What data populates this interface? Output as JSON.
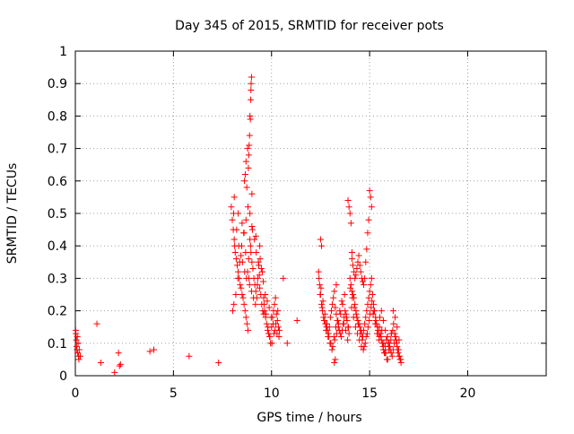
{
  "chart_data": {
    "type": "scatter",
    "title": "Day 345 of 2015, SRMTID for receiver pots",
    "xlabel": "GPS time / hours",
    "ylabel": "SRMTID / TECUs",
    "xlim": [
      0,
      24
    ],
    "ylim": [
      0,
      1
    ],
    "xticks": [
      0,
      5,
      10,
      15,
      20
    ],
    "yticks": [
      0,
      0.1,
      0.2,
      0.3,
      0.4,
      0.5,
      0.6,
      0.7,
      0.8,
      0.9,
      1
    ],
    "grid": true,
    "marker": "+",
    "color": "#ff0000",
    "x": [
      0.02,
      0.03,
      0.05,
      0.06,
      0.08,
      0.1,
      0.12,
      0.14,
      0.16,
      0.18,
      0.2,
      0.25,
      1.1,
      1.3,
      2.0,
      2.2,
      2.25,
      2.3,
      3.8,
      4.0,
      5.8,
      7.3,
      7.95,
      8.0,
      8.05,
      8.1,
      8.12,
      8.15,
      8.2,
      8.25,
      8.3,
      8.35,
      8.4,
      8.45,
      8.5,
      8.55,
      8.6,
      8.65,
      8.7,
      8.75,
      8.8,
      8.85,
      8.9,
      8.95,
      9.0,
      9.05,
      9.1,
      9.15,
      9.2,
      9.25,
      9.3,
      9.35,
      9.4,
      9.45,
      9.5,
      9.55,
      9.6,
      8.02,
      8.08,
      8.18,
      8.28,
      8.38,
      8.48,
      8.58,
      8.68,
      8.78,
      8.88,
      8.98,
      9.08,
      9.18,
      9.28,
      9.38,
      9.48,
      9.58,
      8.07,
      8.22,
      8.33,
      8.44,
      8.52,
      8.63,
      8.72,
      8.83,
      8.93,
      9.03,
      9.13,
      9.22,
      9.33,
      9.42,
      9.53,
      8.1,
      8.3,
      8.5,
      8.6,
      8.7,
      8.8,
      8.9,
      9.0,
      9.2,
      9.4,
      8.62,
      8.66,
      8.7,
      8.74,
      8.78,
      8.82,
      8.84,
      8.86,
      8.88,
      8.9,
      8.92,
      8.94,
      8.95,
      8.96,
      8.98,
      9.0,
      9.6,
      9.65,
      9.7,
      9.75,
      9.8,
      9.85,
      9.9,
      9.95,
      10.0,
      10.05,
      10.1,
      10.15,
      10.2,
      10.25,
      10.3,
      10.35,
      10.4,
      9.62,
      9.72,
      9.82,
      9.92,
      10.02,
      10.12,
      10.22,
      10.32,
      9.68,
      9.78,
      9.88,
      9.98,
      10.08,
      10.18,
      10.28,
      10.38,
      10.6,
      10.8,
      11.3,
      12.4,
      12.45,
      12.5,
      12.55,
      12.6,
      12.65,
      12.7,
      12.75,
      12.8,
      12.85,
      12.9,
      12.95,
      13.0,
      13.05,
      13.1,
      13.15,
      13.2,
      13.25,
      13.3,
      13.35,
      13.4,
      13.45,
      13.5,
      13.55,
      13.6,
      13.65,
      13.7,
      13.75,
      13.8,
      13.85,
      13.9,
      13.95,
      12.42,
      12.52,
      12.62,
      12.72,
      12.82,
      12.92,
      13.02,
      13.12,
      13.22,
      13.32,
      13.42,
      13.52,
      13.62,
      13.72,
      13.82,
      13.92,
      12.48,
      12.58,
      12.68,
      12.78,
      12.88,
      12.98,
      13.08,
      13.18,
      13.28,
      13.38,
      13.48,
      13.58,
      13.68,
      13.78,
      13.88,
      12.5,
      12.55,
      13.2,
      13.25,
      13.3,
      14.0,
      14.05,
      14.1,
      14.15,
      14.2,
      14.25,
      14.3,
      14.35,
      14.4,
      14.45,
      14.5,
      14.55,
      14.6,
      14.65,
      14.7,
      14.75,
      14.8,
      14.85,
      14.9,
      14.95,
      15.0,
      15.05,
      15.1,
      15.15,
      15.2,
      15.25,
      15.3,
      15.35,
      15.4,
      15.45,
      15.5,
      14.02,
      14.12,
      14.22,
      14.32,
      14.42,
      14.52,
      14.62,
      14.72,
      14.82,
      14.92,
      15.02,
      15.12,
      15.22,
      15.32,
      15.42,
      14.08,
      14.18,
      14.28,
      14.38,
      14.48,
      14.58,
      14.68,
      14.78,
      14.88,
      14.98,
      15.08,
      15.18,
      15.28,
      15.38,
      15.48,
      13.9,
      13.95,
      14.0,
      14.05,
      14.1,
      14.75,
      14.8,
      14.85,
      14.9,
      14.95,
      15.0,
      15.05,
      15.1,
      14.1,
      14.15,
      14.2,
      14.25,
      14.3,
      14.35,
      14.4,
      14.45,
      14.5,
      14.55,
      14.6,
      14.65,
      14.7,
      15.5,
      15.55,
      15.6,
      15.65,
      15.7,
      15.75,
      15.8,
      15.85,
      15.9,
      15.95,
      16.0,
      16.05,
      16.1,
      16.15,
      16.2,
      16.25,
      16.3,
      16.35,
      16.4,
      16.45,
      16.5,
      16.55,
      16.6,
      15.52,
      15.62,
      15.72,
      15.82,
      15.92,
      16.02,
      16.12,
      16.22,
      16.32,
      16.42,
      16.52,
      15.58,
      15.68,
      15.78,
      15.88,
      15.98,
      16.08,
      16.18,
      16.28,
      16.38,
      16.48,
      16.58,
      15.6,
      15.7,
      15.8,
      15.9,
      16.0,
      16.1,
      16.2,
      16.3,
      16.4,
      16.5
    ],
    "y": [
      0.14,
      0.13,
      0.11,
      0.09,
      0.08,
      0.12,
      0.07,
      0.1,
      0.06,
      0.05,
      0.08,
      0.06,
      0.16,
      0.04,
      0.01,
      0.07,
      0.03,
      0.035,
      0.075,
      0.08,
      0.06,
      0.04,
      0.52,
      0.48,
      0.45,
      0.42,
      0.4,
      0.38,
      0.36,
      0.34,
      0.32,
      0.3,
      0.28,
      0.27,
      0.25,
      0.24,
      0.22,
      0.2,
      0.18,
      0.16,
      0.14,
      0.3,
      0.42,
      0.38,
      0.35,
      0.33,
      0.3,
      0.28,
      0.26,
      0.24,
      0.3,
      0.34,
      0.27,
      0.25,
      0.22,
      0.2,
      0.19,
      0.2,
      0.22,
      0.25,
      0.3,
      0.35,
      0.4,
      0.44,
      0.38,
      0.32,
      0.28,
      0.26,
      0.24,
      0.22,
      0.28,
      0.31,
      0.33,
      0.29,
      0.5,
      0.45,
      0.4,
      0.37,
      0.35,
      0.32,
      0.3,
      0.36,
      0.4,
      0.45,
      0.42,
      0.38,
      0.35,
      0.36,
      0.32,
      0.55,
      0.5,
      0.47,
      0.44,
      0.48,
      0.52,
      0.5,
      0.46,
      0.43,
      0.4,
      0.6,
      0.62,
      0.66,
      0.58,
      0.7,
      0.64,
      0.68,
      0.71,
      0.74,
      0.8,
      0.79,
      0.85,
      0.88,
      0.9,
      0.92,
      0.56,
      0.24,
      0.2,
      0.18,
      0.16,
      0.14,
      0.13,
      0.12,
      0.1,
      0.15,
      0.18,
      0.2,
      0.22,
      0.24,
      0.19,
      0.17,
      0.15,
      0.14,
      0.22,
      0.19,
      0.15,
      0.12,
      0.1,
      0.13,
      0.16,
      0.2,
      0.25,
      0.23,
      0.21,
      0.18,
      0.16,
      0.14,
      0.13,
      0.12,
      0.3,
      0.1,
      0.17,
      0.32,
      0.28,
      0.25,
      0.22,
      0.2,
      0.18,
      0.17,
      0.16,
      0.15,
      0.14,
      0.13,
      0.15,
      0.18,
      0.2,
      0.22,
      0.24,
      0.26,
      0.21,
      0.19,
      0.17,
      0.15,
      0.14,
      0.13,
      0.12,
      0.14,
      0.16,
      0.18,
      0.2,
      0.19,
      0.17,
      0.15,
      0.13,
      0.3,
      0.27,
      0.23,
      0.19,
      0.16,
      0.12,
      0.1,
      0.09,
      0.11,
      0.13,
      0.16,
      0.19,
      0.22,
      0.25,
      0.18,
      0.15,
      0.25,
      0.21,
      0.17,
      0.14,
      0.12,
      0.1,
      0.08,
      0.12,
      0.15,
      0.17,
      0.2,
      0.23,
      0.16,
      0.14,
      0.11,
      0.42,
      0.4,
      0.04,
      0.05,
      0.28,
      0.3,
      0.28,
      0.26,
      0.25,
      0.24,
      0.22,
      0.2,
      0.18,
      0.17,
      0.16,
      0.15,
      0.14,
      0.13,
      0.12,
      0.14,
      0.16,
      0.18,
      0.2,
      0.22,
      0.24,
      0.26,
      0.28,
      0.3,
      0.25,
      0.22,
      0.2,
      0.18,
      0.16,
      0.15,
      0.13,
      0.12,
      0.27,
      0.24,
      0.21,
      0.19,
      0.16,
      0.13,
      0.11,
      0.09,
      0.12,
      0.15,
      0.19,
      0.23,
      0.2,
      0.17,
      0.14,
      0.21,
      0.18,
      0.15,
      0.13,
      0.11,
      0.09,
      0.08,
      0.1,
      0.13,
      0.17,
      0.21,
      0.19,
      0.16,
      0.13,
      0.11,
      0.54,
      0.52,
      0.5,
      0.47,
      0.38,
      0.3,
      0.35,
      0.39,
      0.44,
      0.48,
      0.57,
      0.55,
      0.52,
      0.36,
      0.34,
      0.32,
      0.3,
      0.31,
      0.33,
      0.35,
      0.37,
      0.34,
      0.32,
      0.3,
      0.29,
      0.28,
      0.15,
      0.13,
      0.11,
      0.1,
      0.08,
      0.07,
      0.09,
      0.11,
      0.12,
      0.1,
      0.09,
      0.08,
      0.07,
      0.06,
      0.08,
      0.1,
      0.12,
      0.11,
      0.09,
      0.07,
      0.06,
      0.05,
      0.04,
      0.18,
      0.14,
      0.1,
      0.07,
      0.05,
      0.09,
      0.13,
      0.16,
      0.12,
      0.08,
      0.06,
      0.12,
      0.09,
      0.07,
      0.05,
      0.08,
      0.11,
      0.14,
      0.13,
      0.1,
      0.08,
      0.05,
      0.2,
      0.17,
      0.14,
      0.12,
      0.1,
      0.13,
      0.2,
      0.18,
      0.15,
      0.11
    ]
  }
}
